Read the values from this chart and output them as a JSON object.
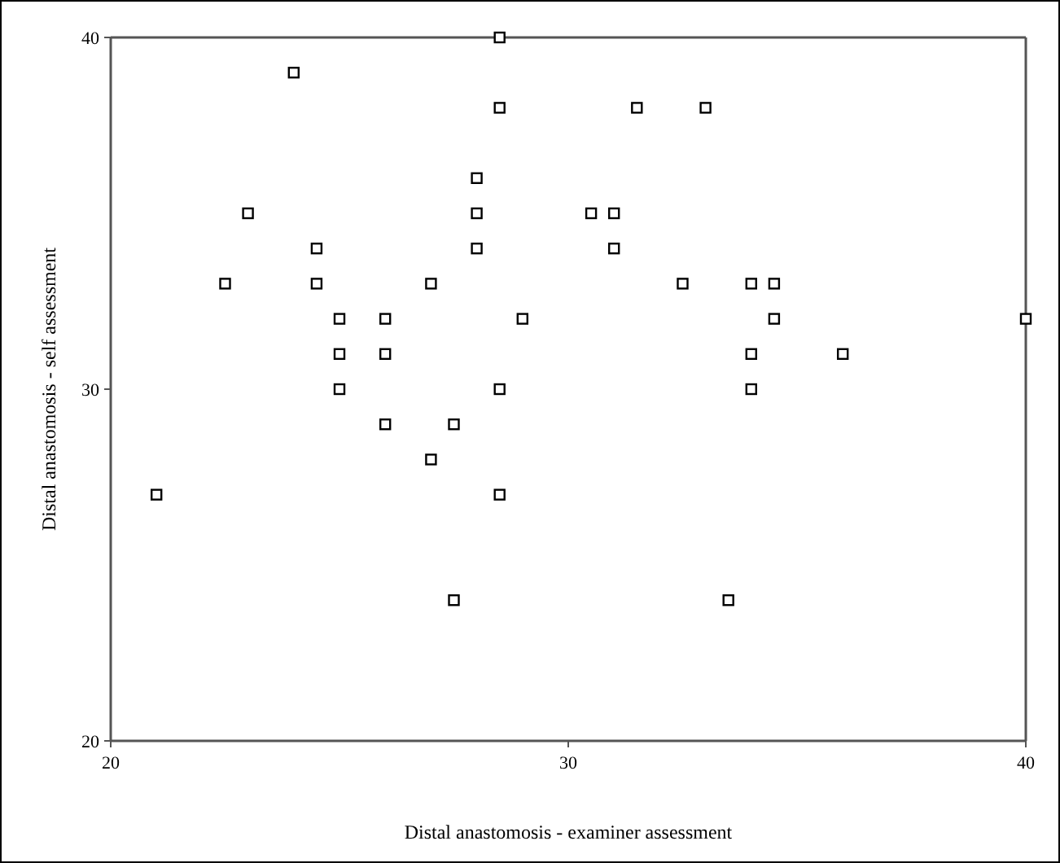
{
  "chart_data": {
    "type": "scatter",
    "xlabel": "Distal anastomosis - examiner assessment",
    "ylabel": "Distal anastomosis - self assessment",
    "xlim": [
      20,
      40
    ],
    "ylim": [
      20,
      40
    ],
    "xticks": [
      20,
      30,
      40
    ],
    "yticks": [
      20,
      30,
      40
    ],
    "grid": false,
    "marker": "square",
    "series": [
      {
        "color": "#000000",
        "x": [
          21,
          22.5,
          23,
          24,
          24.5,
          24.5,
          25,
          25,
          25,
          26,
          26,
          26,
          27,
          27,
          27.5,
          27.5,
          28,
          28,
          28,
          28.5,
          28.5,
          28.5,
          28.5,
          29,
          30.5,
          31,
          31,
          31.5,
          32.5,
          33,
          33.5,
          34,
          34,
          34,
          34.5,
          34.5,
          36,
          40
        ],
        "values": [
          27,
          33,
          35,
          39,
          34,
          33,
          32,
          31,
          30,
          32,
          31,
          29,
          33,
          28,
          29,
          24,
          36,
          35,
          34,
          40,
          38,
          30,
          27,
          32,
          35,
          35,
          34,
          38,
          33,
          38,
          24,
          33,
          31,
          30,
          33,
          32,
          31,
          32
        ]
      }
    ]
  }
}
